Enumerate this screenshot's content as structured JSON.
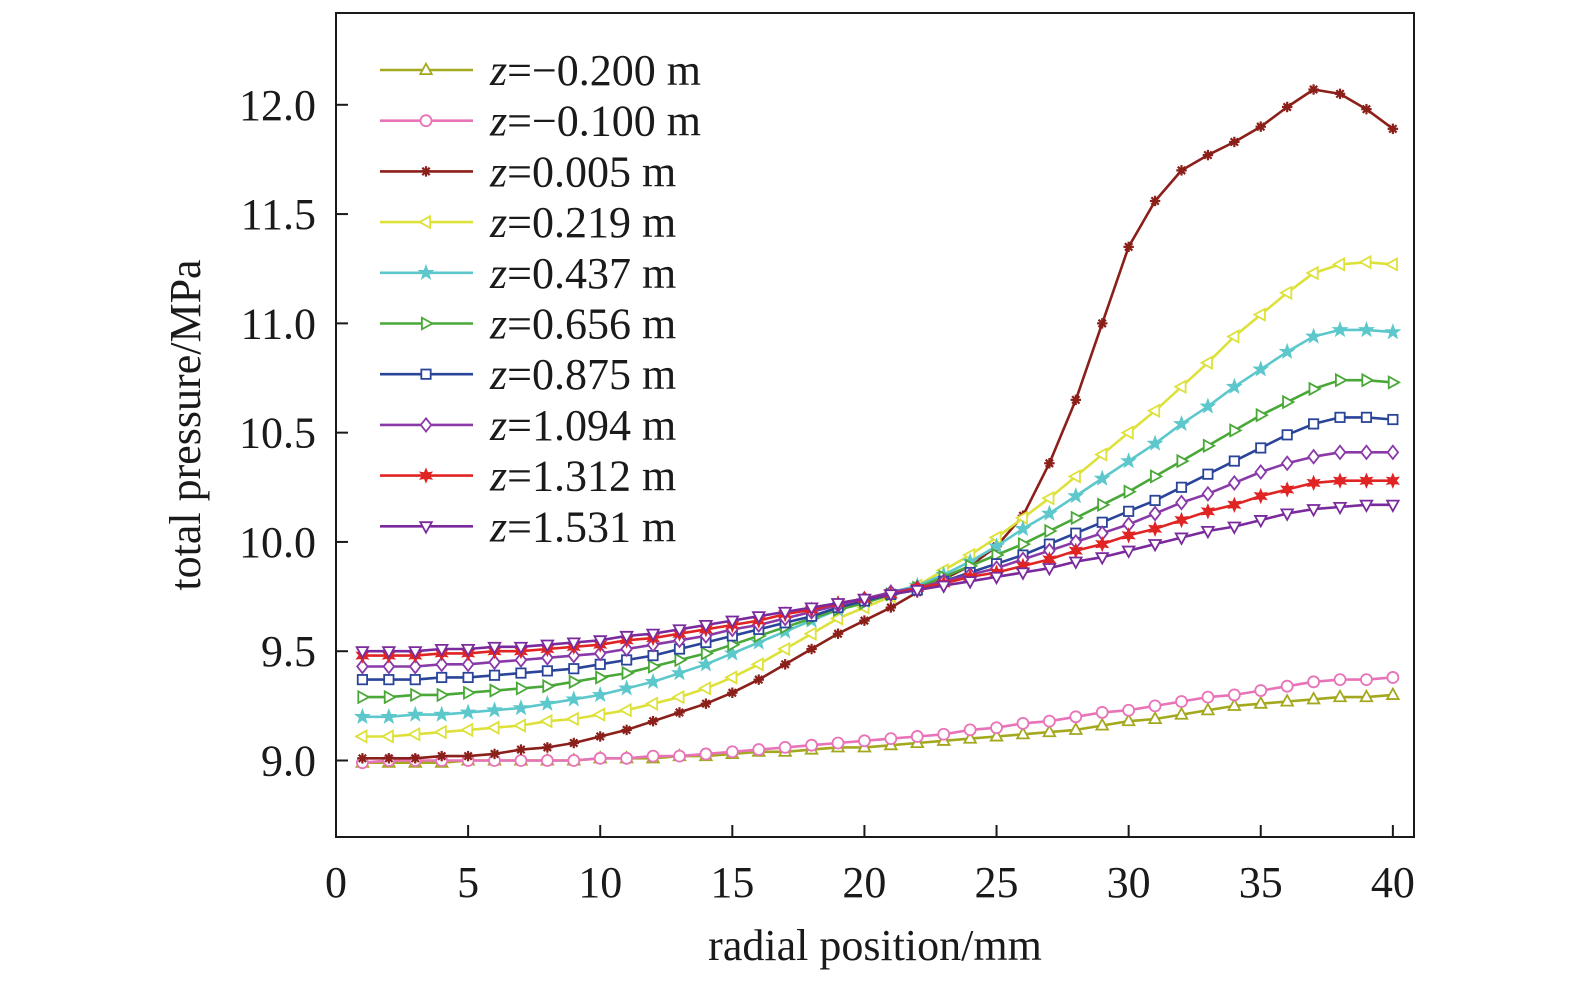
{
  "chart_data": {
    "type": "line",
    "title": "",
    "xlabel": "radial position/mm",
    "ylabel": "total pressure/MPa",
    "xlim": [
      0,
      40.8
    ],
    "ylim": [
      8.65,
      12.42
    ],
    "xticks": [
      0,
      5,
      10,
      15,
      20,
      25,
      30,
      35,
      40
    ],
    "xtick_labels": [
      "0",
      "5",
      "10",
      "15",
      "20",
      "25",
      "30",
      "35",
      "40"
    ],
    "yticks": [
      9.0,
      9.5,
      10.0,
      10.5,
      11.0,
      11.5,
      12.0
    ],
    "ytick_labels": [
      "9.0",
      "9.5",
      "10.0",
      "10.5",
      "11.0",
      "11.5",
      "12.0"
    ],
    "grid": false,
    "legend_position": "top-left",
    "x": [
      1,
      2,
      3,
      4,
      5,
      6,
      7,
      8,
      9,
      10,
      11,
      12,
      13,
      14,
      15,
      16,
      17,
      18,
      19,
      20,
      21,
      22,
      23,
      24,
      25,
      26,
      27,
      28,
      29,
      30,
      31,
      32,
      33,
      34,
      35,
      36,
      37,
      38,
      39,
      40
    ],
    "series": [
      {
        "name": "=−0.200 m",
        "color": "#a4a81e",
        "marker": "triangle-up",
        "values": [
          8.99,
          8.99,
          8.99,
          8.99,
          9.0,
          9.0,
          9.0,
          9.0,
          9.0,
          9.01,
          9.01,
          9.01,
          9.02,
          9.02,
          9.03,
          9.04,
          9.04,
          9.05,
          9.06,
          9.06,
          9.07,
          9.08,
          9.09,
          9.1,
          9.11,
          9.12,
          9.13,
          9.14,
          9.16,
          9.18,
          9.19,
          9.21,
          9.23,
          9.25,
          9.26,
          9.27,
          9.28,
          9.29,
          9.29,
          9.3
        ]
      },
      {
        "name": "=−0.100 m",
        "color": "#e873b8",
        "marker": "circle",
        "values": [
          8.99,
          9.0,
          9.0,
          9.0,
          9.0,
          9.0,
          9.0,
          9.0,
          9.0,
          9.01,
          9.01,
          9.02,
          9.02,
          9.03,
          9.04,
          9.05,
          9.06,
          9.07,
          9.08,
          9.09,
          9.1,
          9.11,
          9.12,
          9.14,
          9.15,
          9.17,
          9.18,
          9.2,
          9.22,
          9.23,
          9.25,
          9.27,
          9.29,
          9.3,
          9.32,
          9.34,
          9.36,
          9.37,
          9.37,
          9.38
        ]
      },
      {
        "name": "=0.005 m",
        "color": "#8b1f1a",
        "marker": "asterisk",
        "values": [
          9.01,
          9.01,
          9.01,
          9.02,
          9.02,
          9.03,
          9.05,
          9.06,
          9.08,
          9.11,
          9.14,
          9.18,
          9.22,
          9.26,
          9.31,
          9.37,
          9.44,
          9.51,
          9.58,
          9.64,
          9.7,
          9.77,
          9.83,
          9.89,
          9.98,
          10.12,
          10.36,
          10.65,
          11.0,
          11.35,
          11.56,
          11.7,
          11.77,
          11.83,
          11.9,
          11.99,
          12.07,
          12.05,
          11.98,
          11.89
        ]
      },
      {
        "name": "=0.219 m",
        "color": "#dde13a",
        "marker": "triangle-left",
        "values": [
          9.11,
          9.11,
          9.12,
          9.13,
          9.14,
          9.15,
          9.16,
          9.18,
          9.19,
          9.21,
          9.23,
          9.26,
          9.29,
          9.33,
          9.38,
          9.44,
          9.51,
          9.58,
          9.65,
          9.7,
          9.75,
          9.8,
          9.87,
          9.94,
          10.02,
          10.11,
          10.2,
          10.3,
          10.4,
          10.5,
          10.6,
          10.71,
          10.82,
          10.94,
          11.04,
          11.14,
          11.23,
          11.27,
          11.28,
          11.27
        ]
      },
      {
        "name": "=0.437 m",
        "color": "#5cc8cc",
        "marker": "star",
        "values": [
          9.2,
          9.2,
          9.21,
          9.21,
          9.22,
          9.23,
          9.24,
          9.26,
          9.28,
          9.3,
          9.33,
          9.36,
          9.4,
          9.44,
          9.49,
          9.54,
          9.59,
          9.64,
          9.69,
          9.73,
          9.77,
          9.8,
          9.85,
          9.91,
          9.98,
          10.06,
          10.13,
          10.21,
          10.29,
          10.37,
          10.45,
          10.54,
          10.62,
          10.71,
          10.79,
          10.87,
          10.94,
          10.97,
          10.97,
          10.96
        ]
      },
      {
        "name": "=0.656 m",
        "color": "#4aa838",
        "marker": "triangle-right",
        "values": [
          9.29,
          9.29,
          9.3,
          9.3,
          9.31,
          9.32,
          9.33,
          9.34,
          9.36,
          9.38,
          9.4,
          9.43,
          9.46,
          9.49,
          9.53,
          9.57,
          9.61,
          9.65,
          9.69,
          9.72,
          9.76,
          9.79,
          9.84,
          9.89,
          9.94,
          9.99,
          10.05,
          10.11,
          10.17,
          10.23,
          10.3,
          10.37,
          10.44,
          10.51,
          10.58,
          10.64,
          10.7,
          10.74,
          10.74,
          10.73
        ]
      },
      {
        "name": "=0.875 m",
        "color": "#2a449a",
        "marker": "square",
        "values": [
          9.37,
          9.37,
          9.37,
          9.38,
          9.38,
          9.39,
          9.4,
          9.41,
          9.42,
          9.44,
          9.46,
          9.48,
          9.51,
          9.54,
          9.57,
          9.6,
          9.63,
          9.66,
          9.7,
          9.73,
          9.76,
          9.78,
          9.82,
          9.86,
          9.9,
          9.94,
          9.99,
          10.04,
          10.09,
          10.14,
          10.19,
          10.25,
          10.31,
          10.37,
          10.43,
          10.49,
          10.54,
          10.57,
          10.57,
          10.56
        ]
      },
      {
        "name": "=1.094 m",
        "color": "#8a3aa8",
        "marker": "diamond",
        "values": [
          9.43,
          9.43,
          9.43,
          9.44,
          9.44,
          9.45,
          9.46,
          9.47,
          9.48,
          9.49,
          9.51,
          9.53,
          9.55,
          9.57,
          9.6,
          9.62,
          9.65,
          9.68,
          9.71,
          9.74,
          9.77,
          9.79,
          9.82,
          9.85,
          9.88,
          9.92,
          9.96,
          10.0,
          10.04,
          10.08,
          10.13,
          10.18,
          10.22,
          10.27,
          10.32,
          10.36,
          10.39,
          10.41,
          10.41,
          10.41
        ]
      },
      {
        "name": "=1.312 m",
        "color": "#e02424",
        "marker": "star6",
        "values": [
          9.48,
          9.48,
          9.48,
          9.49,
          9.49,
          9.5,
          9.5,
          9.51,
          9.52,
          9.53,
          9.55,
          9.56,
          9.58,
          9.6,
          9.62,
          9.64,
          9.67,
          9.69,
          9.72,
          9.74,
          9.76,
          9.79,
          9.81,
          9.84,
          9.86,
          9.89,
          9.92,
          9.96,
          9.99,
          10.03,
          10.06,
          10.1,
          10.14,
          10.17,
          10.21,
          10.24,
          10.27,
          10.28,
          10.28,
          10.28
        ]
      },
      {
        "name": "=1.531 m",
        "color": "#7a2a9c",
        "marker": "triangle-down",
        "values": [
          9.5,
          9.5,
          9.5,
          9.51,
          9.51,
          9.52,
          9.52,
          9.53,
          9.54,
          9.55,
          9.57,
          9.58,
          9.6,
          9.62,
          9.64,
          9.66,
          9.68,
          9.7,
          9.72,
          9.74,
          9.76,
          9.78,
          9.8,
          9.82,
          9.84,
          9.86,
          9.88,
          9.91,
          9.93,
          9.96,
          9.99,
          10.02,
          10.05,
          10.07,
          10.1,
          10.13,
          10.15,
          10.16,
          10.17,
          10.17
        ]
      }
    ]
  }
}
